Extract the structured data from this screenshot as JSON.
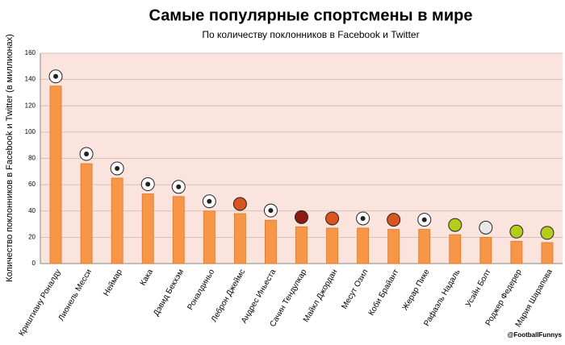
{
  "chart_data": {
    "type": "bar",
    "title": "Самые популярные спортсмены в мире",
    "subtitle": "По количеству поклонников в Facebook и Twitter",
    "y_label": "Количество поклонников в Facebook и Twitter (в миллионах)",
    "annotation": "@FootballFunnys",
    "categories": [
      "Криштиану Роналду",
      "Лионель Месси",
      "Неймар",
      "Кака",
      "Дэвид Бекхэм",
      "Роналдиньо",
      "Леброн Джеймс",
      "Андрес Иньеста",
      "Сачин Тендулкар",
      "Майкл Джордан",
      "Месут Озил",
      "Коби Брайант",
      "Жерар Пике",
      "Рафаэль Надаль",
      "Усэйн Болт",
      "Роджер Федерер",
      "Мария Шарапова"
    ],
    "values": [
      135,
      76,
      65,
      53,
      51,
      40,
      38,
      33,
      28,
      27,
      27,
      26,
      26,
      22,
      20,
      17,
      16
    ],
    "color": "#f79646",
    "icon_colors": [
      "#ffffff",
      "#ffffff",
      "#ffffff",
      "#ffffff",
      "#ffffff",
      "#ffffff",
      "#d9541e",
      "#ffffff",
      "#8b1a10",
      "#d9541e",
      "#ffffff",
      "#d9541e",
      "#ffffff",
      "#b5cc18",
      "#e8e8e8",
      "#b5cc18",
      "#b5cc18"
    ],
    "ylim": [
      0,
      160
    ],
    "yticks": [
      0,
      20,
      40,
      60,
      80,
      100,
      120,
      140,
      160
    ],
    "grid": true
  }
}
